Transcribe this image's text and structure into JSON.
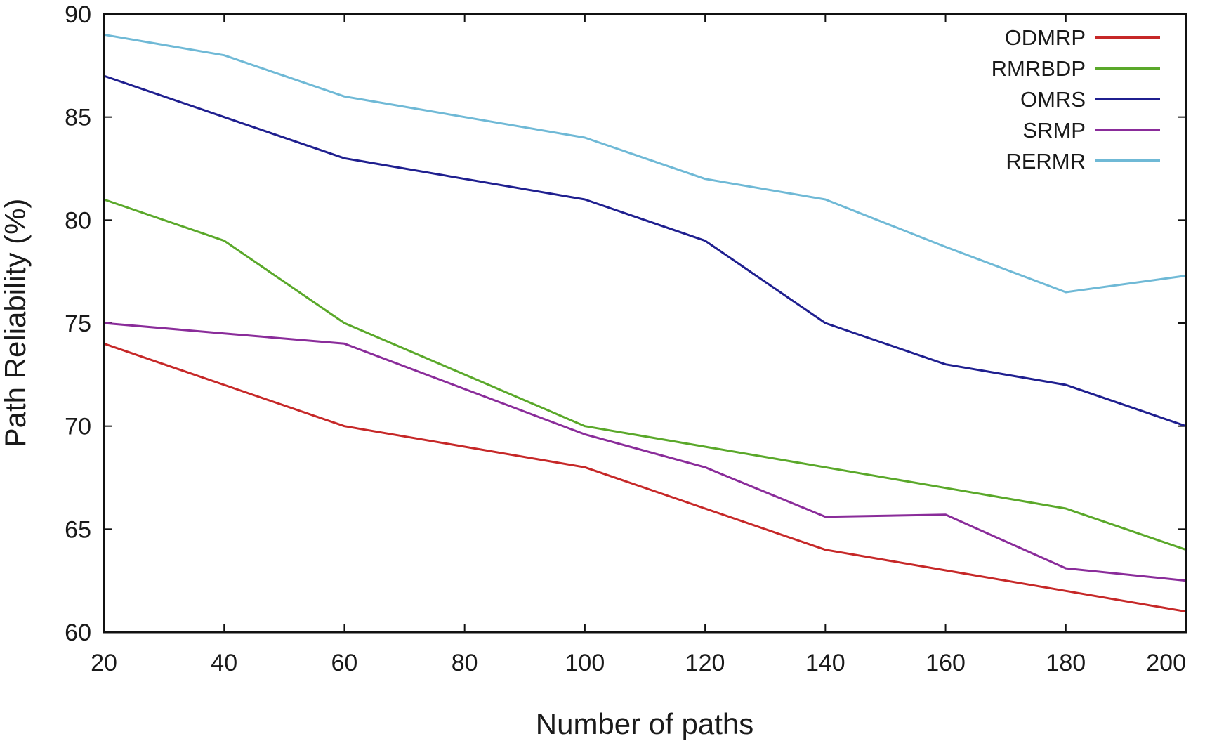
{
  "chart_data": {
    "type": "line",
    "title": "",
    "xlabel": "Number of paths",
    "ylabel": "Path Reliability (%)",
    "xlim": [
      20,
      200
    ],
    "ylim": [
      60,
      90
    ],
    "xticks": [
      20,
      40,
      60,
      80,
      100,
      120,
      140,
      160,
      180,
      200
    ],
    "yticks": [
      60,
      65,
      70,
      75,
      80,
      85,
      90
    ],
    "grid": false,
    "legend_position": "top-right",
    "x": [
      20,
      40,
      60,
      80,
      100,
      120,
      140,
      160,
      180,
      200
    ],
    "series": [
      {
        "name": "ODMRP",
        "color": "#c62828",
        "values": [
          74,
          72,
          70,
          69,
          68,
          66,
          64,
          63,
          62,
          61
        ]
      },
      {
        "name": "RMRBDP",
        "color": "#5aa82a",
        "values": [
          81,
          79,
          75,
          72.5,
          70,
          69,
          68,
          67,
          66,
          64
        ]
      },
      {
        "name": "OMRS",
        "color": "#1f1f8f",
        "values": [
          87,
          85,
          83,
          82,
          81,
          79,
          75,
          73,
          72,
          70
        ]
      },
      {
        "name": "SRMP",
        "color": "#8a2c9a",
        "values": [
          75,
          74.5,
          74,
          71.8,
          69.6,
          68,
          65.6,
          65.7,
          63.1,
          62.5
        ]
      },
      {
        "name": "RERMR",
        "color": "#6fb9d6",
        "values": [
          89,
          88,
          86,
          85,
          84,
          82,
          81,
          78.7,
          76.5,
          77.3
        ]
      }
    ]
  }
}
